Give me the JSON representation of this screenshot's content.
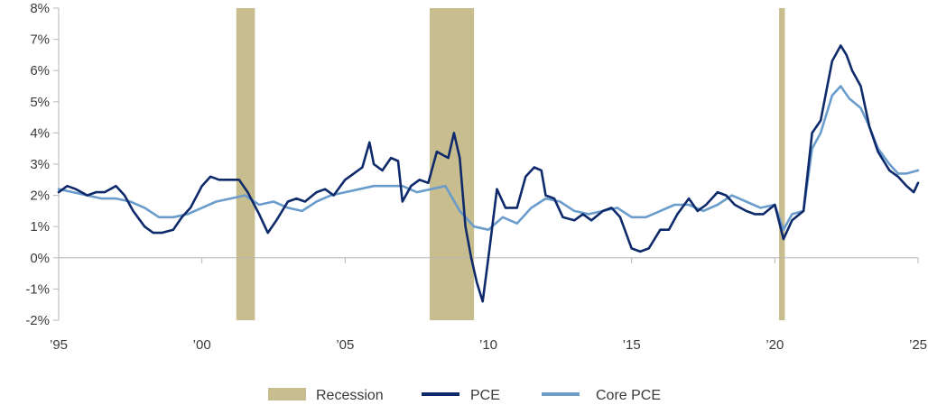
{
  "chart_data": {
    "type": "line",
    "title": "",
    "xlabel": "",
    "ylabel": "",
    "xlim": [
      1995,
      2025
    ],
    "ylim": [
      -2,
      8
    ],
    "y_ticks": [
      8,
      7,
      6,
      5,
      4,
      3,
      2,
      1,
      0,
      -1,
      -2
    ],
    "y_tick_labels": [
      "8%",
      "7%",
      "6%",
      "5%",
      "4%",
      "3%",
      "2%",
      "1%",
      "0%",
      "-1%",
      "-2%"
    ],
    "x_ticks": [
      1995,
      2000,
      2005,
      2010,
      2015,
      2020,
      2025
    ],
    "x_tick_labels": [
      "’95",
      "’00",
      "’05",
      "’10",
      "’15",
      "’20",
      "’25"
    ],
    "grid": false,
    "legend_placement": "bottom-center",
    "colors": {
      "recession": "#c8bd8f",
      "pce": "#0e2a6b",
      "core_pce": "#6a9ccc",
      "axis": "#b5b5b5"
    },
    "recessions": [
      {
        "start": 2001.2,
        "end": 2001.85
      },
      {
        "start": 2007.95,
        "end": 2009.5
      },
      {
        "start": 2020.15,
        "end": 2020.35
      }
    ],
    "legend": [
      {
        "label": "Recession",
        "key": "recession"
      },
      {
        "label": "PCE",
        "key": "pce"
      },
      {
        "label": "Core PCE",
        "key": "core_pce"
      }
    ],
    "series": [
      {
        "name": "PCE",
        "key": "pce",
        "x": [
          1995.0,
          1995.3,
          1995.6,
          1996.0,
          1996.3,
          1996.6,
          1997.0,
          1997.3,
          1997.6,
          1998.0,
          1998.3,
          1998.6,
          1999.0,
          1999.3,
          1999.6,
          2000.0,
          2000.3,
          2000.6,
          2001.0,
          2001.3,
          2001.6,
          2002.0,
          2002.3,
          2002.6,
          2003.0,
          2003.3,
          2003.6,
          2004.0,
          2004.3,
          2004.6,
          2005.0,
          2005.3,
          2005.6,
          2005.85,
          2006.0,
          2006.3,
          2006.6,
          2006.85,
          2007.0,
          2007.3,
          2007.6,
          2007.9,
          2008.2,
          2008.4,
          2008.6,
          2008.8,
          2009.0,
          2009.2,
          2009.4,
          2009.6,
          2009.8,
          2010.0,
          2010.3,
          2010.6,
          2011.0,
          2011.3,
          2011.6,
          2011.85,
          2012.0,
          2012.3,
          2012.6,
          2013.0,
          2013.3,
          2013.6,
          2014.0,
          2014.3,
          2014.6,
          2015.0,
          2015.3,
          2015.6,
          2016.0,
          2016.3,
          2016.6,
          2017.0,
          2017.3,
          2017.6,
          2018.0,
          2018.3,
          2018.6,
          2019.0,
          2019.3,
          2019.6,
          2020.0,
          2020.3,
          2020.6,
          2021.0,
          2021.3,
          2021.6,
          2022.0,
          2022.3,
          2022.5,
          2022.7,
          2023.0,
          2023.3,
          2023.6,
          2024.0,
          2024.3,
          2024.6,
          2024.85,
          2025.0
        ],
        "values": [
          2.1,
          2.3,
          2.2,
          2.0,
          2.1,
          2.1,
          2.3,
          2.0,
          1.5,
          1.0,
          0.8,
          0.8,
          0.9,
          1.3,
          1.6,
          2.3,
          2.6,
          2.5,
          2.5,
          2.5,
          2.1,
          1.4,
          0.8,
          1.2,
          1.8,
          1.9,
          1.8,
          2.1,
          2.2,
          2.0,
          2.5,
          2.7,
          2.9,
          3.7,
          3.0,
          2.8,
          3.2,
          3.1,
          1.8,
          2.3,
          2.5,
          2.4,
          3.4,
          3.3,
          3.2,
          4.0,
          3.2,
          1.0,
          0.0,
          -0.8,
          -1.4,
          0.0,
          2.2,
          1.6,
          1.6,
          2.6,
          2.9,
          2.8,
          2.0,
          1.9,
          1.3,
          1.2,
          1.4,
          1.2,
          1.5,
          1.6,
          1.3,
          0.3,
          0.2,
          0.3,
          0.9,
          0.9,
          1.4,
          1.9,
          1.5,
          1.7,
          2.1,
          2.0,
          1.7,
          1.5,
          1.4,
          1.4,
          1.7,
          0.6,
          1.2,
          1.5,
          4.0,
          4.4,
          6.3,
          6.8,
          6.5,
          6.0,
          5.5,
          4.2,
          3.4,
          2.8,
          2.6,
          2.3,
          2.1,
          2.4
        ]
      },
      {
        "name": "Core PCE",
        "key": "core_pce",
        "x": [
          1995.0,
          1995.5,
          1996.0,
          1996.5,
          1997.0,
          1997.5,
          1998.0,
          1998.5,
          1999.0,
          1999.5,
          2000.0,
          2000.5,
          2001.0,
          2001.5,
          2002.0,
          2002.5,
          2003.0,
          2003.5,
          2004.0,
          2004.5,
          2005.0,
          2005.5,
          2006.0,
          2006.5,
          2007.0,
          2007.5,
          2008.0,
          2008.5,
          2009.0,
          2009.5,
          2010.0,
          2010.5,
          2011.0,
          2011.5,
          2012.0,
          2012.5,
          2013.0,
          2013.5,
          2014.0,
          2014.5,
          2015.0,
          2015.5,
          2016.0,
          2016.5,
          2017.0,
          2017.5,
          2018.0,
          2018.5,
          2019.0,
          2019.5,
          2020.0,
          2020.3,
          2020.6,
          2021.0,
          2021.3,
          2021.6,
          2022.0,
          2022.3,
          2022.6,
          2023.0,
          2023.3,
          2023.6,
          2024.0,
          2024.3,
          2024.6,
          2025.0
        ],
        "values": [
          2.2,
          2.1,
          2.0,
          1.9,
          1.9,
          1.8,
          1.6,
          1.3,
          1.3,
          1.4,
          1.6,
          1.8,
          1.9,
          2.0,
          1.7,
          1.8,
          1.6,
          1.5,
          1.8,
          2.0,
          2.1,
          2.2,
          2.3,
          2.3,
          2.3,
          2.1,
          2.2,
          2.3,
          1.5,
          1.0,
          0.9,
          1.3,
          1.1,
          1.6,
          1.9,
          1.8,
          1.5,
          1.4,
          1.5,
          1.6,
          1.3,
          1.3,
          1.5,
          1.7,
          1.7,
          1.5,
          1.7,
          2.0,
          1.8,
          1.6,
          1.7,
          0.9,
          1.4,
          1.5,
          3.5,
          4.0,
          5.2,
          5.5,
          5.1,
          4.8,
          4.2,
          3.5,
          3.0,
          2.7,
          2.7,
          2.8
        ]
      }
    ]
  }
}
